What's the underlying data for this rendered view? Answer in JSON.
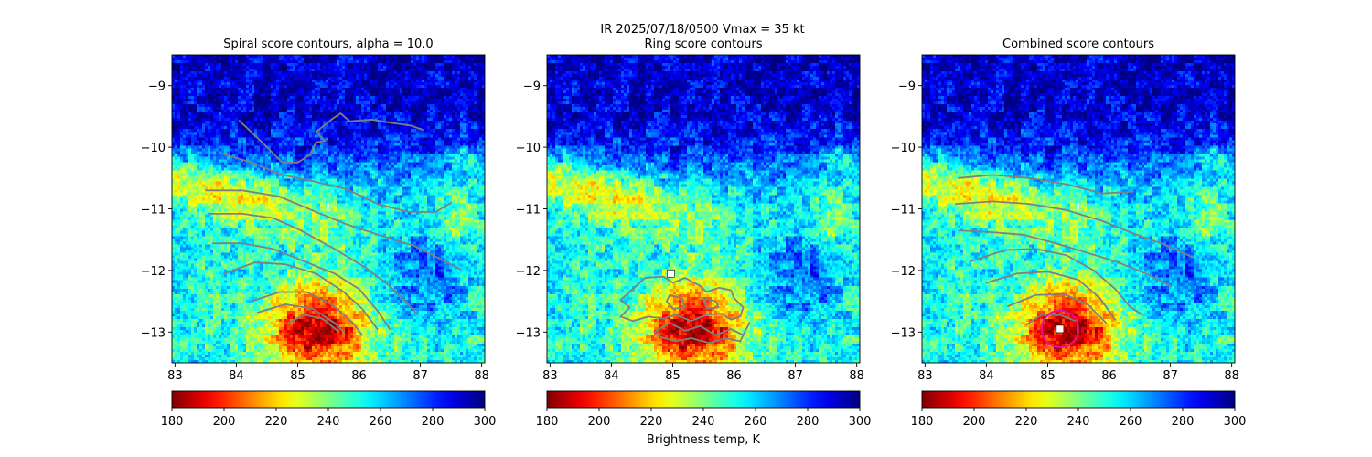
{
  "figure": {
    "suptitle": "IR  2025/07/18/0500    Vmax = 35 kt",
    "colorbar_label": "Brightness temp, K"
  },
  "colors": {
    "contour": "#808080",
    "marker": "#ffffff",
    "circle": "#e0109a"
  },
  "colorbar": {
    "colormap": "jet_r",
    "range": [
      180,
      300
    ],
    "ticks": [
      "180",
      "200",
      "220",
      "240",
      "260",
      "280",
      "300"
    ]
  },
  "chart_data": [
    {
      "type": "heatmap",
      "title": "Spiral score contours, alpha = 10.0",
      "xlim": [
        82.95,
        88.05
      ],
      "ylim": [
        -13.5,
        -8.5
      ],
      "xticks": [
        "83",
        "84",
        "85",
        "86",
        "87",
        "88"
      ],
      "yticks": [
        "−9",
        "−10",
        "−11",
        "−12",
        "−13"
      ],
      "marker": {
        "symbol": "plus",
        "x": 85.5,
        "y": -10.97
      },
      "contours": [
        [
          [
            84.05,
            -9.57
          ],
          [
            84.45,
            -9.95
          ],
          [
            84.75,
            -10.25
          ],
          [
            85.0,
            -10.25
          ],
          [
            85.2,
            -10.12
          ],
          [
            85.3,
            -9.92
          ],
          [
            85.45,
            -9.9
          ],
          [
            85.3,
            -9.75
          ],
          [
            85.55,
            -9.55
          ],
          [
            85.7,
            -9.45
          ],
          [
            85.85,
            -9.58
          ],
          [
            86.2,
            -9.55
          ],
          [
            86.5,
            -9.6
          ],
          [
            86.85,
            -9.65
          ],
          [
            87.05,
            -9.72
          ]
        ],
        [
          [
            83.75,
            -10.1
          ],
          [
            84.25,
            -10.25
          ],
          [
            84.75,
            -10.45
          ],
          [
            85.25,
            -10.55
          ],
          [
            85.8,
            -10.68
          ],
          [
            86.3,
            -10.92
          ],
          [
            86.8,
            -11.05
          ],
          [
            87.25,
            -11.05
          ],
          [
            87.5,
            -10.9
          ]
        ],
        [
          [
            83.5,
            -10.7
          ],
          [
            84.1,
            -10.7
          ],
          [
            84.7,
            -10.8
          ],
          [
            85.3,
            -11.05
          ],
          [
            85.8,
            -11.25
          ],
          [
            86.4,
            -11.45
          ],
          [
            86.9,
            -11.6
          ],
          [
            87.4,
            -11.85
          ],
          [
            87.65,
            -11.98
          ]
        ],
        [
          [
            83.55,
            -11.08
          ],
          [
            84.1,
            -11.08
          ],
          [
            84.6,
            -11.15
          ],
          [
            85.05,
            -11.35
          ],
          [
            85.6,
            -11.65
          ],
          [
            86.1,
            -11.95
          ],
          [
            86.5,
            -12.25
          ],
          [
            86.8,
            -12.55
          ],
          [
            86.95,
            -12.72
          ]
        ],
        [
          [
            83.62,
            -11.56
          ],
          [
            84.1,
            -11.56
          ],
          [
            84.6,
            -11.65
          ],
          [
            85.1,
            -11.85
          ],
          [
            85.6,
            -12.05
          ],
          [
            86.0,
            -12.3
          ],
          [
            86.3,
            -12.65
          ],
          [
            86.5,
            -12.95
          ]
        ],
        [
          [
            83.8,
            -12.05
          ],
          [
            84.3,
            -11.87
          ],
          [
            84.8,
            -11.9
          ],
          [
            85.3,
            -12.05
          ],
          [
            85.75,
            -12.35
          ],
          [
            86.05,
            -12.62
          ],
          [
            86.3,
            -12.95
          ]
        ],
        [
          [
            84.25,
            -12.5
          ],
          [
            84.7,
            -12.35
          ],
          [
            85.15,
            -12.35
          ],
          [
            85.55,
            -12.55
          ],
          [
            85.9,
            -12.85
          ],
          [
            86.05,
            -13.05
          ]
        ],
        [
          [
            84.35,
            -12.68
          ],
          [
            84.8,
            -12.55
          ],
          [
            85.25,
            -12.62
          ],
          [
            85.6,
            -12.85
          ],
          [
            85.75,
            -13.0
          ]
        ],
        [
          [
            84.85,
            -12.85
          ],
          [
            85.1,
            -12.72
          ],
          [
            85.4,
            -12.78
          ],
          [
            85.65,
            -12.98
          ]
        ]
      ]
    },
    {
      "type": "heatmap",
      "title": "Ring score contours",
      "xlim": [
        82.95,
        88.05
      ],
      "ylim": [
        -13.5,
        -8.5
      ],
      "xticks": [
        "83",
        "84",
        "85",
        "86",
        "87",
        "88"
      ],
      "yticks": [
        "−9",
        "−10",
        "−11",
        "−12",
        "−13"
      ],
      "marker": {
        "symbol": "square",
        "x": 84.97,
        "y": -12.05
      },
      "contours": [
        [
          [
            84.35,
            -12.3
          ],
          [
            84.55,
            -12.12
          ],
          [
            84.85,
            -12.1
          ],
          [
            85.0,
            -12.2
          ],
          [
            85.2,
            -12.12
          ],
          [
            85.45,
            -12.25
          ],
          [
            85.55,
            -12.35
          ],
          [
            85.75,
            -12.28
          ],
          [
            85.95,
            -12.32
          ],
          [
            86.0,
            -12.45
          ],
          [
            86.15,
            -12.6
          ],
          [
            86.1,
            -12.75
          ],
          [
            85.95,
            -12.8
          ],
          [
            85.8,
            -12.7
          ],
          [
            85.55,
            -12.72
          ],
          [
            85.3,
            -12.82
          ],
          [
            85.05,
            -12.72
          ],
          [
            84.85,
            -12.78
          ],
          [
            84.6,
            -12.75
          ],
          [
            84.35,
            -12.82
          ],
          [
            84.15,
            -12.75
          ],
          [
            84.3,
            -12.6
          ],
          [
            84.15,
            -12.48
          ],
          [
            84.35,
            -12.3
          ]
        ],
        [
          [
            84.7,
            -13.0
          ],
          [
            84.95,
            -12.85
          ],
          [
            85.2,
            -12.98
          ],
          [
            85.45,
            -12.9
          ],
          [
            85.7,
            -13.05
          ],
          [
            85.95,
            -12.95
          ],
          [
            86.15,
            -13.05
          ],
          [
            86.25,
            -12.85
          ],
          [
            86.1,
            -13.15
          ],
          [
            85.85,
            -13.1
          ],
          [
            85.6,
            -13.18
          ],
          [
            85.3,
            -13.1
          ],
          [
            85.05,
            -13.15
          ],
          [
            84.8,
            -13.08
          ],
          [
            84.7,
            -13.0
          ]
        ],
        [
          [
            84.95,
            -12.4
          ],
          [
            85.15,
            -12.45
          ],
          [
            85.2,
            -12.6
          ],
          [
            85.0,
            -12.62
          ],
          [
            84.9,
            -12.5
          ],
          [
            84.95,
            -12.4
          ]
        ],
        [
          [
            85.5,
            -12.45
          ],
          [
            85.7,
            -12.5
          ],
          [
            85.75,
            -12.6
          ],
          [
            85.55,
            -12.62
          ],
          [
            85.5,
            -12.45
          ]
        ]
      ]
    },
    {
      "type": "heatmap",
      "title": "Combined score contours",
      "xlim": [
        82.95,
        88.05
      ],
      "ylim": [
        -13.5,
        -8.5
      ],
      "xticks": [
        "83",
        "84",
        "85",
        "86",
        "87",
        "88"
      ],
      "yticks": [
        "−9",
        "−10",
        "−11",
        "−12",
        "−13"
      ],
      "marker": {
        "symbol": "plus",
        "x": 85.5,
        "y": -10.97
      },
      "center": {
        "symbol": "square",
        "x": 85.2,
        "y": -12.95
      },
      "ring_radius_deg": 0.3,
      "contours": [
        [
          [
            83.55,
            -10.5
          ],
          [
            84.1,
            -10.45
          ],
          [
            84.7,
            -10.5
          ],
          [
            85.3,
            -10.6
          ],
          [
            85.9,
            -10.75
          ],
          [
            86.4,
            -10.72
          ]
        ],
        [
          [
            83.5,
            -10.92
          ],
          [
            84.1,
            -10.88
          ],
          [
            84.7,
            -10.92
          ],
          [
            85.3,
            -11.02
          ],
          [
            85.9,
            -11.2
          ],
          [
            86.4,
            -11.4
          ],
          [
            86.9,
            -11.58
          ],
          [
            87.35,
            -11.78
          ]
        ],
        [
          [
            83.55,
            -11.35
          ],
          [
            84.1,
            -11.38
          ],
          [
            84.6,
            -11.42
          ],
          [
            85.1,
            -11.55
          ],
          [
            85.6,
            -11.7
          ],
          [
            86.1,
            -11.85
          ],
          [
            86.6,
            -12.05
          ],
          [
            87.0,
            -12.25
          ]
        ],
        [
          [
            83.75,
            -11.85
          ],
          [
            84.3,
            -11.67
          ],
          [
            84.8,
            -11.65
          ],
          [
            85.3,
            -11.75
          ],
          [
            85.75,
            -12.0
          ],
          [
            86.1,
            -12.3
          ],
          [
            86.35,
            -12.6
          ],
          [
            86.55,
            -12.72
          ]
        ],
        [
          [
            84.0,
            -12.2
          ],
          [
            84.5,
            -12.05
          ],
          [
            85.0,
            -12.02
          ],
          [
            85.5,
            -12.15
          ],
          [
            85.85,
            -12.45
          ],
          [
            86.1,
            -12.8
          ]
        ],
        [
          [
            84.35,
            -12.58
          ],
          [
            84.8,
            -12.4
          ],
          [
            85.25,
            -12.38
          ],
          [
            85.65,
            -12.55
          ],
          [
            85.95,
            -12.85
          ]
        ],
        [
          [
            84.65,
            -12.88
          ],
          [
            84.9,
            -12.72
          ],
          [
            85.2,
            -12.72
          ],
          [
            85.45,
            -12.82
          ]
        ]
      ]
    }
  ]
}
